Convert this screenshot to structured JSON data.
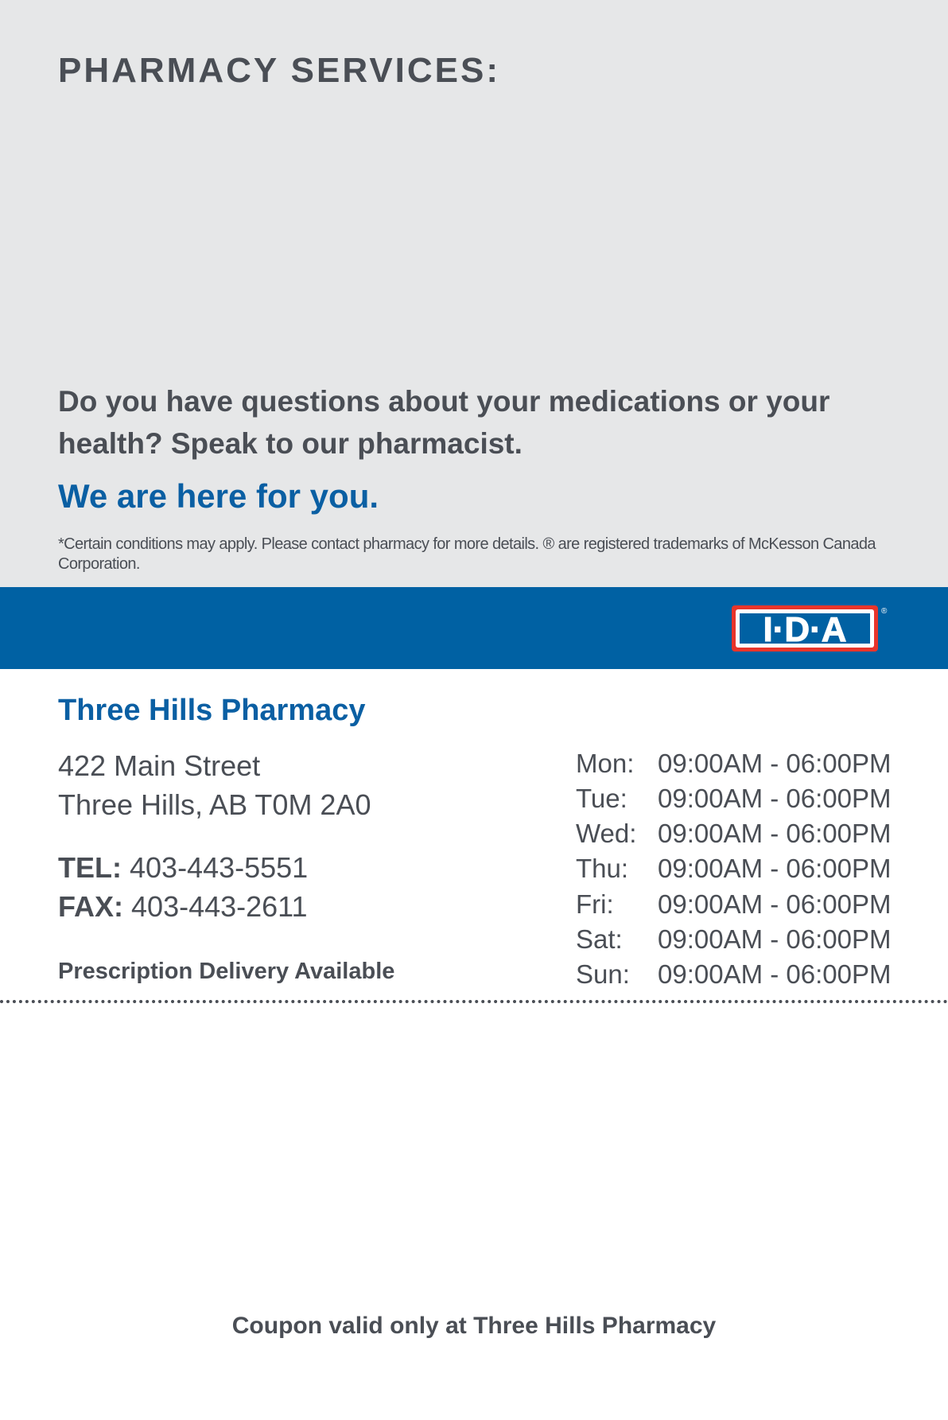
{
  "header": {
    "title": "PHARMACY SERVICES:"
  },
  "promo": {
    "question": "Do you have questions about your medications or your health? Speak to our pharmacist.",
    "tagline": "We are here for you.",
    "footnote": "*Certain conditions may apply. Please contact pharmacy for more details. ® are registered trademarks of McKesson Canada Corporation."
  },
  "brand": {
    "logo_text": "I·D·A®",
    "band_color": "#0061a3",
    "logo_red": "#e8352b"
  },
  "store": {
    "name": "Three Hills Pharmacy",
    "address_line1": "422 Main Street",
    "address_line2": "Three Hills, AB T0M 2A0",
    "tel_label": "TEL:",
    "tel": "403-443-5551",
    "fax_label": "FAX:",
    "fax": "403-443-2611",
    "delivery": "Prescription Delivery Available"
  },
  "hours": [
    {
      "day": "Mon:",
      "time": "09:00AM - 06:00PM"
    },
    {
      "day": "Tue:",
      "time": "09:00AM - 06:00PM"
    },
    {
      "day": "Wed:",
      "time": "09:00AM - 06:00PM"
    },
    {
      "day": "Thu:",
      "time": "09:00AM - 06:00PM"
    },
    {
      "day": "Fri:",
      "time": "09:00AM - 06:00PM"
    },
    {
      "day": "Sat:",
      "time": "09:00AM - 06:00PM"
    },
    {
      "day": "Sun:",
      "time": "09:00AM - 06:00PM"
    }
  ],
  "coupon": {
    "note": "Coupon valid only at Three Hills Pharmacy"
  }
}
